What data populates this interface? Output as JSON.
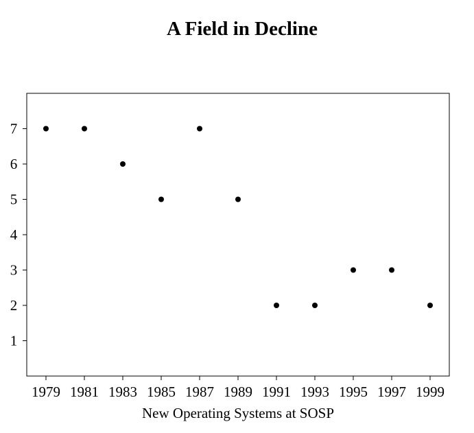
{
  "chart_data": {
    "type": "scatter",
    "title": "A Field in Decline",
    "xlabel": "New Operating Systems at SOSP",
    "ylabel": "",
    "x": [
      1979,
      1981,
      1983,
      1985,
      1987,
      1989,
      1991,
      1993,
      1995,
      1997,
      1999
    ],
    "y": [
      7,
      7,
      6,
      5,
      7,
      5,
      2,
      2,
      3,
      3,
      2
    ],
    "x_ticks": [
      "1979",
      "1981",
      "1983",
      "1985",
      "1987",
      "1989",
      "1991",
      "1993",
      "1995",
      "1997",
      "1999"
    ],
    "y_ticks": [
      "1",
      "2",
      "3",
      "4",
      "5",
      "6",
      "7"
    ],
    "xlim": [
      1978,
      2000
    ],
    "ylim": [
      0,
      8
    ],
    "grid": false,
    "legend": "none",
    "marker_color": "#000000"
  }
}
